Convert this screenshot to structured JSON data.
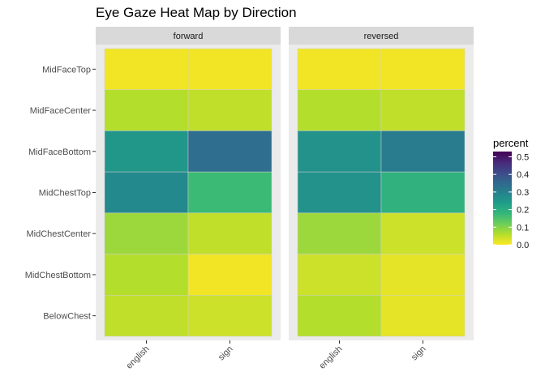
{
  "chart_data": {
    "type": "heatmap",
    "title": "Eye Gaze Heat Map by Direction",
    "facets": [
      "forward",
      "reversed"
    ],
    "x_categories": [
      "english",
      "sign"
    ],
    "y_categories": [
      "MidFaceTop",
      "MidFaceCenter",
      "MidFaceBottom",
      "MidChestTop",
      "MidChestCenter",
      "MidChestBottom",
      "BelowChest"
    ],
    "values": {
      "forward": {
        "english": [
          0.01,
          0.06,
          0.25,
          0.28,
          0.08,
          0.06,
          0.05
        ],
        "sign": [
          0.01,
          0.05,
          0.34,
          0.17,
          0.05,
          0.01,
          0.04
        ]
      },
      "reversed": {
        "english": [
          0.01,
          0.06,
          0.26,
          0.26,
          0.08,
          0.04,
          0.06
        ],
        "sign": [
          0.01,
          0.05,
          0.31,
          0.19,
          0.04,
          0.02,
          0.02
        ]
      }
    },
    "legend": {
      "title": "percent",
      "ticks": [
        0.0,
        0.1,
        0.2,
        0.3,
        0.4,
        0.5
      ],
      "tick_labels": [
        "0.0",
        "0.1",
        "0.2",
        "0.3",
        "0.4",
        "0.5"
      ],
      "range": [
        0,
        0.53
      ],
      "colormap": "viridis (reversed: yellow = low, purple = high)"
    },
    "colors": {
      "panel_background": "#ebebeb",
      "strip_background": "#d9d9d9",
      "low": "#fde725",
      "high": "#440154"
    }
  }
}
